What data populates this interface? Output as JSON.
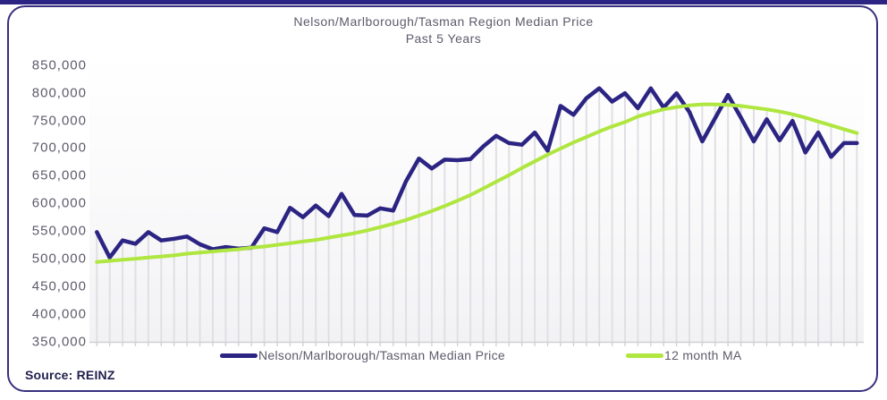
{
  "window": {
    "top_bar_color": "#2B2483",
    "card_border_color": "#38307E",
    "background_color": "#FFFFFF"
  },
  "header": {
    "title_line1": "Nelson/Marlborough/Tasman Region Median Price",
    "title_line2": "Past 5 Years"
  },
  "footer": {
    "source": "Source: REINZ"
  },
  "legend": {
    "items": [
      {
        "label": "Nelson/Marlborough/Tasman Median Price",
        "color": "#2B2483"
      },
      {
        "label": "12 month MA",
        "color": "#AFE63F"
      }
    ]
  },
  "chart_data": {
    "type": "line",
    "title": "Nelson/Marlborough/Tasman Region Median Price",
    "subtitle": "Past 5 Years",
    "xlabel": "",
    "ylabel": "",
    "x_axis": "monthly points over past 5 years (no tick labels shown)",
    "ylim": [
      350000,
      850000
    ],
    "ytick_step": 50000,
    "yticks": [
      {
        "value": 850000,
        "label": "850,000"
      },
      {
        "value": 800000,
        "label": "800,000"
      },
      {
        "value": 750000,
        "label": "750,000"
      },
      {
        "value": 700000,
        "label": "700,000"
      },
      {
        "value": 650000,
        "label": "650,000"
      },
      {
        "value": 600000,
        "label": "600,000"
      },
      {
        "value": 550000,
        "label": "550,000"
      },
      {
        "value": 500000,
        "label": "500,000"
      },
      {
        "value": 450000,
        "label": "450,000"
      },
      {
        "value": 400000,
        "label": "400,000"
      },
      {
        "value": 350000,
        "label": "350,000"
      }
    ],
    "grid": "vertical grey drop-lines at each point, no horizontal gridlines",
    "legend_position": "bottom",
    "series": [
      {
        "name": "Nelson/Marlborough/Tasman Median Price",
        "color": "#2B2483",
        "line_width": 4.5,
        "values": [
          548000,
          502000,
          533000,
          527000,
          548000,
          533000,
          536000,
          540000,
          526000,
          517000,
          521000,
          518000,
          520000,
          555000,
          548000,
          592000,
          575000,
          596000,
          577000,
          617000,
          579000,
          578000,
          591000,
          587000,
          640000,
          681000,
          663000,
          679000,
          678000,
          680000,
          703000,
          722000,
          709000,
          706000,
          728000,
          695000,
          776000,
          760000,
          790000,
          808000,
          784000,
          799000,
          772000,
          808000,
          773000,
          799000,
          765000,
          712000,
          754000,
          796000,
          755000,
          712000,
          752000,
          714000,
          749000,
          692000,
          728000,
          684000,
          709000,
          709000
        ]
      },
      {
        "name": "12 month MA",
        "color": "#AFE63F",
        "line_width": 4,
        "values": [
          494000,
          496000,
          498000,
          500000,
          502000,
          504000,
          506000,
          509000,
          511000,
          513000,
          515000,
          517000,
          520000,
          522000,
          525000,
          528000,
          531000,
          534000,
          538000,
          542000,
          546000,
          551000,
          557000,
          563000,
          570000,
          578000,
          586000,
          595000,
          605000,
          615000,
          627000,
          639000,
          651000,
          664000,
          676000,
          688000,
          699000,
          710000,
          720000,
          730000,
          739000,
          747000,
          757000,
          764000,
          770000,
          774000,
          777000,
          779000,
          779000,
          778000,
          776000,
          773000,
          770000,
          766000,
          761000,
          755000,
          748000,
          741000,
          734000,
          727000
        ]
      }
    ],
    "style": {
      "dropline_color": "#E0E0E4",
      "axis_color": "#CFCFD4",
      "text_color": "#5E5A6B"
    }
  }
}
